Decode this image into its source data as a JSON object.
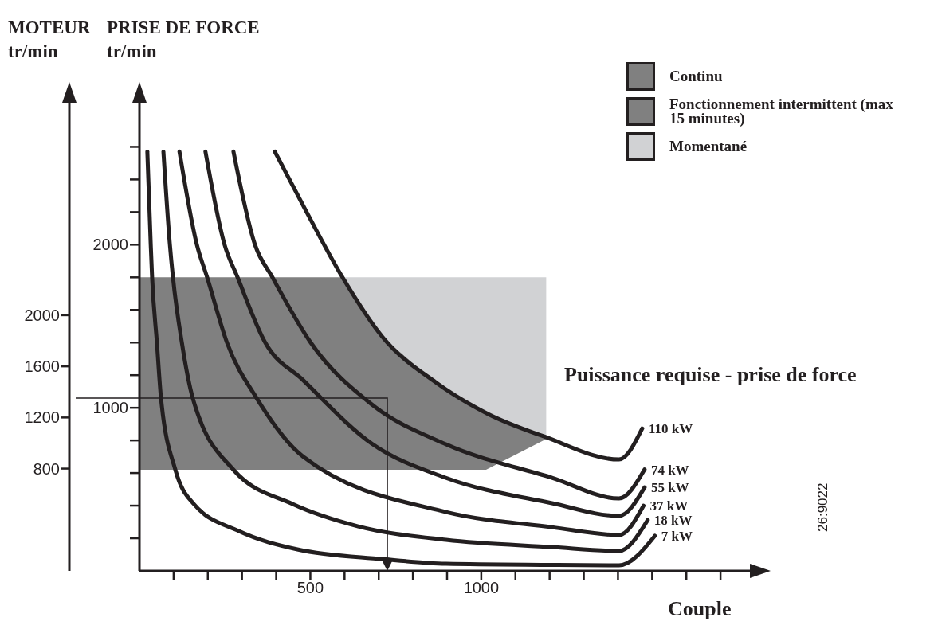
{
  "chart_data": {
    "type": "line",
    "xlabel": "Couple",
    "ylabel": "PRISE DE FORCE tr/min",
    "y2label": "MOTEUR tr/min",
    "annotations": [
      "Puissance requise - prise de force",
      "26:9022"
    ],
    "xlim": [
      0,
      1800
    ],
    "xticks": [
      {
        "value": 100,
        "label": null
      },
      {
        "value": 200,
        "label": null
      },
      {
        "value": 300,
        "label": null
      },
      {
        "value": 400,
        "label": null
      },
      500,
      {
        "value": 600,
        "label": null
      },
      {
        "value": 700,
        "label": null
      },
      {
        "value": 800,
        "label": null
      },
      {
        "value": 900,
        "label": null
      },
      1000,
      {
        "value": 1100,
        "label": null
      },
      {
        "value": 1200,
        "label": null
      },
      {
        "value": 1300,
        "label": null
      },
      {
        "value": 1400,
        "label": null
      },
      {
        "value": 1500,
        "label": null
      },
      {
        "value": 1600,
        "label": null
      },
      {
        "value": 1700,
        "label": null
      }
    ],
    "ylim": [
      0,
      2900
    ],
    "yticks": [
      {
        "value": 200,
        "label": null
      },
      {
        "value": 400,
        "label": null
      },
      {
        "value": 600,
        "label": null
      },
      {
        "value": 800,
        "label": null
      },
      1000,
      {
        "value": 1200,
        "label": null
      },
      {
        "value": 1400,
        "label": null
      },
      {
        "value": 1600,
        "label": null
      },
      {
        "value": 1800,
        "label": null
      },
      2000,
      {
        "value": 2200,
        "label": null
      },
      {
        "value": 2400,
        "label": null
      },
      {
        "value": 2600,
        "label": null
      }
    ],
    "y2lim": [
      0,
      3700
    ],
    "y2ticks": [
      800,
      1200,
      1600,
      2000
    ],
    "legend": "top right",
    "marker": "none",
    "series": [
      {
        "type": "area",
        "name": "Continu",
        "color": "#808080"
      },
      {
        "type": "area",
        "name": "Fonctionnement intermittent (max 15 minutes)",
        "color": "#808080",
        "x": [
          0,
          594,
          711,
          867,
          1014,
          1193,
          1014,
          0
        ],
        "values": [
          1800,
          1800,
          1434,
          1156,
          970,
          812,
          620,
          620
        ]
      },
      {
        "type": "area",
        "name": "Momentané",
        "color": "#d1d2d4",
        "x": [
          594,
          1190,
          1190,
          1014,
          867,
          711
        ],
        "values": [
          1800,
          1800,
          815,
          970,
          1156,
          1434
        ]
      },
      {
        "name": "110 kW",
        "color": "#231f20",
        "x": [
          396,
          478,
          594,
          711,
          867,
          1021,
          1184,
          1403,
          1471
        ],
        "values": [
          2571,
          2244,
          1800,
          1434,
          1156,
          961,
          824,
          683,
          873
        ]
      },
      {
        "name": "74 kW",
        "color": "#231f20",
        "x": [
          275,
          338,
          389,
          501,
          680,
          897,
          1207,
          1403,
          1478
        ],
        "values": [
          2571,
          2000,
          1800,
          1400,
          1020,
          776,
          571,
          444,
          622
        ]
      },
      {
        "name": "55 kW",
        "color": "#231f20",
        "x": [
          193,
          249,
          287,
          368,
          478,
          680,
          897,
          1207,
          1403,
          1478
        ],
        "values": [
          2571,
          2000,
          1800,
          1400,
          1171,
          780,
          570,
          415,
          337,
          512
        ]
      },
      {
        "name": "37 kW",
        "color": "#231f20",
        "x": [
          117,
          168,
          198,
          256,
          343,
          478,
          897,
          1207,
          1403,
          1475
        ],
        "values": [
          2571,
          2000,
          1800,
          1400,
          1059,
          702,
          361,
          268,
          220,
          400
        ]
      },
      {
        "name": "18 kW",
        "color": "#231f20",
        "x": [
          70,
          89,
          98,
          124,
          156,
          275,
          448,
          640,
          897,
          1207,
          1403,
          1487
        ],
        "values": [
          2571,
          2000,
          1800,
          1400,
          1059,
          620,
          410,
          273,
          190,
          146,
          122,
          312
        ]
      },
      {
        "name": "7 kW",
        "color": "#231f20",
        "x": [
          23,
          33,
          37,
          51,
          63,
          105,
          159,
          291,
          462,
          711,
          897,
          1207,
          1403,
          1508
        ],
        "values": [
          2571,
          2000,
          1800,
          1400,
          1059,
          620,
          410,
          244,
          132,
          73,
          44,
          37,
          34,
          215
        ]
      }
    ]
  }
}
